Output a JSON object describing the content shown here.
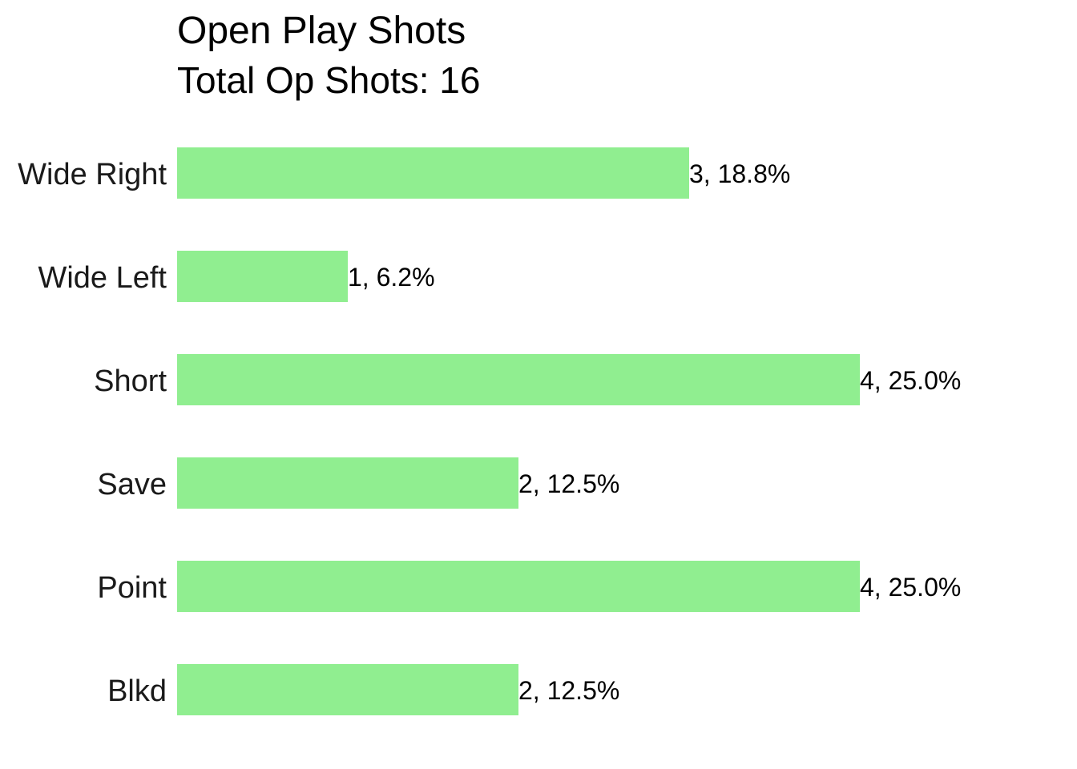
{
  "chart_data": {
    "type": "bar",
    "orientation": "horizontal",
    "title": "Open Play Shots",
    "subtitle": "Total Op Shots: 16",
    "categories": [
      "Wide Right",
      "Wide Left",
      "Short",
      "Save",
      "Point",
      "Blkd"
    ],
    "values": [
      3,
      1,
      4,
      2,
      4,
      2
    ],
    "labels": [
      "3, 18.8%",
      "1, 6.2%",
      "4, 25.0%",
      "2, 12.5%",
      "4, 25.0%",
      "2, 12.5%"
    ],
    "xlim": [
      0,
      4
    ],
    "bar_color": "#90EE90",
    "grid": false,
    "axes_visible": false
  }
}
